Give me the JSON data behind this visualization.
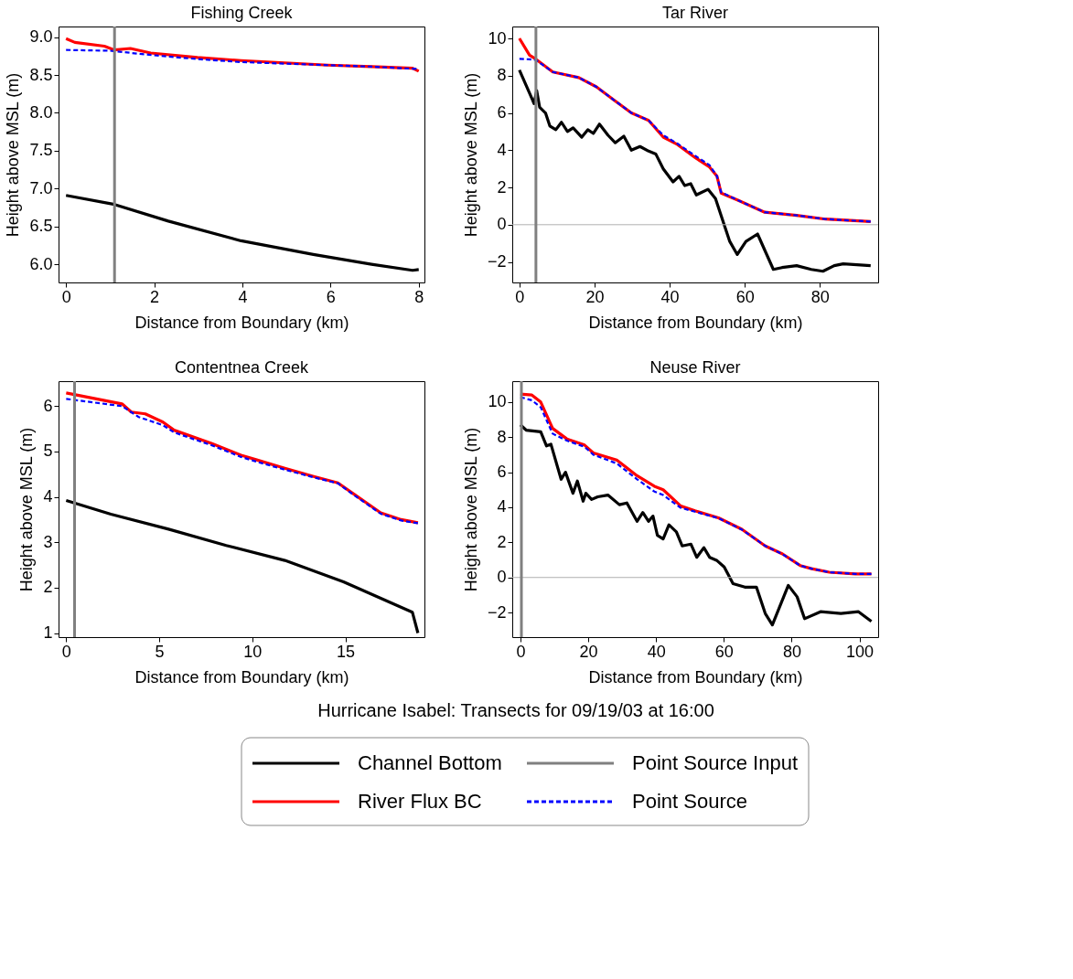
{
  "chart_data": [
    {
      "type": "line",
      "title": "Fishing Creek",
      "xlabel": "Distance from Boundary (km)",
      "ylabel": "Height above MSL (m)",
      "xlim": [
        -0.17,
        8.13
      ],
      "ylim": [
        5.76,
        9.14
      ],
      "xticks": [
        0,
        2,
        4,
        6,
        8
      ],
      "yticks": [
        {
          "value": 6,
          "label": "6.0"
        },
        6.5,
        {
          "value": 7,
          "label": "7.0"
        },
        7.5,
        {
          "value": 8,
          "label": "8.0"
        },
        8.5,
        {
          "value": 9,
          "label": "9.0"
        }
      ],
      "legend": "bottom",
      "annotations": [
        "Hurricane Isabel: Transects for 09/19/03 at 16:00"
      ],
      "ref_lines": [
        {
          "axis": "x",
          "value": 1.1,
          "label": "Point Source Input",
          "color": "#808080"
        }
      ],
      "series": [
        {
          "name": "Channel Bottom",
          "color": "#000000",
          "x": [
            0,
            1.1,
            2.32,
            3.97,
            5.61,
            6.93,
            7.86,
            8.0
          ],
          "values": [
            6.91,
            6.79,
            6.57,
            6.31,
            6.13,
            6.0,
            5.92,
            5.93
          ]
        },
        {
          "name": "River Flux BC",
          "color": "#ff0000",
          "x": [
            0,
            0.2,
            0.87,
            1.1,
            1.46,
            1.92,
            2.98,
            3.97,
            4.96,
            5.94,
            6.93,
            7.86,
            8.0
          ],
          "values": [
            8.98,
            8.93,
            8.88,
            8.83,
            8.85,
            8.79,
            8.73,
            8.69,
            8.66,
            8.63,
            8.61,
            8.59,
            8.55
          ]
        },
        {
          "name": "Point Source",
          "color": "#0000ff",
          "line_style": "dashed",
          "x": [
            0,
            1.0,
            1.99,
            2.98,
            3.97,
            4.96,
            5.94,
            6.93,
            7.95
          ],
          "values": [
            8.83,
            8.82,
            8.76,
            8.71,
            8.67,
            8.65,
            8.63,
            8.61,
            8.58
          ]
        }
      ]
    },
    {
      "type": "line",
      "title": "Tar River",
      "xlabel": "Distance from Boundary (km)",
      "ylabel": "Height above MSL (m)",
      "xlim": [
        -1.9,
        95.5
      ],
      "ylim": [
        -3.1,
        10.64
      ],
      "xticks": [
        0,
        20,
        40,
        60,
        80
      ],
      "yticks": [
        -2,
        0,
        2,
        4,
        6,
        8,
        10
      ],
      "ref_lines": [
        {
          "axis": "x",
          "value": 4.4,
          "color": "#808080"
        },
        {
          "axis": "y",
          "value": 0,
          "color": "#b0b0b0"
        }
      ],
      "series": [
        {
          "color": "#000000",
          "x": [
            0,
            3.5,
            3.9,
            4.6,
            5.4,
            6.95,
            8.1,
            9.7,
            11.2,
            12.8,
            14.3,
            16.6,
            18.2,
            19.7,
            21.3,
            23.6,
            25.5,
            27.8,
            29.8,
            32.1,
            34.4,
            36.3,
            38.3,
            40.9,
            42.5,
            44.0,
            45.6,
            47.1,
            50.2,
            52.2,
            54.5,
            56.0,
            58.0,
            60.3,
            63.4,
            67.6,
            69.9,
            73.8,
            77.7,
            80.8,
            83.8,
            86.2,
            93.5
          ],
          "values": [
            8.3,
            6.7,
            6.5,
            7.2,
            6.3,
            6.0,
            5.3,
            5.1,
            5.5,
            5.0,
            5.2,
            4.7,
            5.1,
            4.9,
            5.4,
            4.8,
            4.4,
            4.75,
            4.0,
            4.2,
            3.95,
            3.8,
            3.0,
            2.3,
            2.6,
            2.1,
            2.2,
            1.6,
            1.9,
            1.4,
            0,
            -0.9,
            -1.6,
            -0.9,
            -0.5,
            -2.4,
            -2.3,
            -2.2,
            -2.4,
            -2.5,
            -2.2,
            -2.1,
            -2.2
          ]
        },
        {
          "color": "#ff0000",
          "x": [
            0,
            2.7,
            4.3,
            8.9,
            15.8,
            20.5,
            25.1,
            29.8,
            34.4,
            38.3,
            42.1,
            46.8,
            50.6,
            52.6,
            53.7,
            58.3,
            65.3,
            73.8,
            81.5,
            93.5
          ],
          "values": [
            10,
            9.1,
            8.9,
            8.2,
            7.9,
            7.4,
            6.7,
            6.0,
            5.6,
            4.7,
            4.3,
            3.6,
            3.1,
            2.6,
            1.7,
            1.3,
            0.67,
            0.5,
            0.3,
            0.17
          ]
        },
        {
          "color": "#0000ff",
          "line_style": "dashed",
          "x": [
            0,
            2.7,
            4.3,
            8.9,
            15.8,
            20.5,
            25.1,
            29.8,
            34.4,
            38.3,
            42.1,
            46.8,
            50.6,
            52.6,
            53.7,
            58.3,
            65.3,
            73.8,
            81.5,
            93.5
          ],
          "values": [
            8.9,
            8.88,
            8.85,
            8.2,
            7.9,
            7.4,
            6.7,
            6.0,
            5.6,
            4.8,
            4.35,
            3.7,
            3.2,
            2.6,
            1.75,
            1.3,
            0.67,
            0.5,
            0.3,
            0.17
          ]
        }
      ]
    },
    {
      "type": "line",
      "title": "Contentnea Creek",
      "xlabel": "Distance from Boundary (km)",
      "ylabel": "Height above MSL (m)",
      "xlim": [
        -0.41,
        19.25
      ],
      "ylim": [
        0.91,
        6.55
      ],
      "xticks": [
        0,
        5,
        10,
        15
      ],
      "yticks": [
        1,
        2,
        3,
        4,
        5,
        6
      ],
      "ref_lines": [
        {
          "axis": "x",
          "value": 0.45,
          "color": "#808080"
        }
      ],
      "series": [
        {
          "color": "#000000",
          "x": [
            0,
            2.4,
            5.5,
            8.6,
            11.75,
            14.9,
            18.6,
            18.9
          ],
          "values": [
            3.92,
            3.62,
            3.29,
            2.93,
            2.6,
            2.13,
            1.46,
            1.0
          ]
        },
        {
          "color": "#ff0000",
          "x": [
            0,
            3.0,
            3.5,
            4.25,
            5.2,
            5.8,
            7.8,
            9.4,
            10.2,
            11.75,
            13.3,
            14.6,
            15.5,
            16.9,
            18.0,
            18.9
          ],
          "values": [
            6.29,
            6.05,
            5.87,
            5.83,
            5.65,
            5.47,
            5.18,
            4.92,
            4.82,
            4.63,
            4.45,
            4.31,
            4.05,
            3.65,
            3.5,
            3.43
          ]
        },
        {
          "color": "#0000ff",
          "line_style": "dashed",
          "x": [
            0,
            3.0,
            3.9,
            5.2,
            5.8,
            7.8,
            9.4,
            10.2,
            11.75,
            13.3,
            14.6,
            15.5,
            16.9,
            18.0,
            18.9
          ],
          "values": [
            6.16,
            6.0,
            5.76,
            5.58,
            5.42,
            5.14,
            4.88,
            4.78,
            4.6,
            4.43,
            4.3,
            4.03,
            3.63,
            3.48,
            3.42
          ]
        }
      ]
    },
    {
      "type": "line",
      "title": "Neuse River",
      "xlabel": "Distance from Boundary (km)",
      "ylabel": "Height above MSL (m)",
      "xlim": [
        -2.4,
        105.5
      ],
      "ylim": [
        -3.4,
        11.19
      ],
      "xticks": [
        0,
        20,
        40,
        60,
        80,
        100
      ],
      "yticks": [
        -2,
        0,
        2,
        4,
        6,
        8,
        10
      ],
      "ref_lines": [
        {
          "axis": "x",
          "value": 0.3,
          "color": "#808080"
        },
        {
          "axis": "y",
          "value": 0,
          "color": "#b0b0b0"
        }
      ],
      "series": [
        {
          "color": "#000000",
          "x": [
            0,
            1.7,
            6.0,
            7.7,
            9.0,
            12.0,
            13.3,
            15.5,
            16.8,
            18.5,
            19.3,
            21.0,
            22.8,
            25.8,
            29.2,
            31.4,
            34.4,
            36.1,
            37.8,
            39.1,
            40.4,
            42.1,
            43.8,
            46.0,
            47.7,
            50.3,
            52.0,
            54.1,
            55.8,
            58.0,
            60.1,
            62.7,
            66.2,
            69.6,
            72.2,
            74.3,
            79.0,
            81.6,
            83.8,
            88.5,
            94.5,
            99.7,
            103.5
          ],
          "values": [
            8.7,
            8.4,
            8.3,
            7.5,
            7.6,
            5.6,
            6.0,
            4.8,
            5.5,
            4.35,
            4.8,
            4.45,
            4.6,
            4.7,
            4.15,
            4.25,
            3.2,
            3.7,
            3.2,
            3.5,
            2.4,
            2.2,
            3.0,
            2.6,
            1.8,
            1.9,
            1.15,
            1.7,
            1.15,
            0.96,
            0.6,
            -0.35,
            -0.55,
            -0.55,
            -2.05,
            -2.7,
            -0.45,
            -1.1,
            -2.35,
            -1.95,
            -2.05,
            -1.95,
            -2.5
          ]
        },
        {
          "color": "#ff0000",
          "x": [
            0,
            3.4,
            6.0,
            9.5,
            13.7,
            18.9,
            21.5,
            28.4,
            34.4,
            39.5,
            42.1,
            47.3,
            51.5,
            58.4,
            65.3,
            72.2,
            77.3,
            82.5,
            85.9,
            91.1,
            98.8,
            103.5
          ],
          "values": [
            10.45,
            10.4,
            10,
            8.5,
            7.9,
            7.55,
            7.1,
            6.7,
            5.8,
            5.2,
            5.0,
            4.07,
            3.8,
            3.4,
            2.75,
            1.8,
            1.34,
            0.68,
            0.5,
            0.3,
            0.2,
            0.2
          ]
        },
        {
          "color": "#0000ff",
          "line_style": "dashed",
          "x": [
            0,
            3.4,
            6.0,
            9.5,
            13.7,
            18.9,
            21.5,
            28.4,
            34.4,
            39.5,
            42.1,
            47.3,
            51.5,
            58.4,
            65.3,
            72.2,
            77.3,
            82.5,
            85.9,
            91.1,
            98.8,
            103.5
          ],
          "values": [
            10.28,
            10.1,
            9.7,
            8.2,
            7.8,
            7.45,
            7.0,
            6.5,
            5.6,
            4.9,
            4.7,
            3.97,
            3.75,
            3.38,
            2.73,
            1.8,
            1.33,
            0.68,
            0.5,
            0.3,
            0.2,
            0.2
          ]
        }
      ]
    }
  ]
}
